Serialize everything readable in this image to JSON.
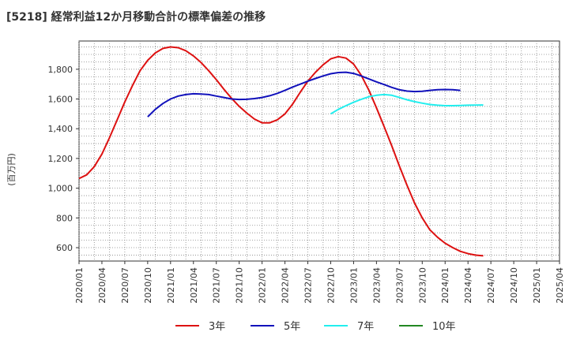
{
  "chart_data": {
    "type": "line",
    "title": "[5218]  経常利益12か月移動合計の標準偏差の推移",
    "ylabel": "(百万円)",
    "xlabel": "",
    "ylim": [
      510,
      1990
    ],
    "yticks": [
      600,
      800,
      1000,
      1200,
      1400,
      1600,
      1800
    ],
    "ytick_labels": [
      "600",
      "800",
      "1,000",
      "1,200",
      "1,400",
      "1,600",
      "1,800"
    ],
    "xlim": [
      "2020-01",
      "2025-04"
    ],
    "xticks": [
      "2020/01",
      "2020/04",
      "2020/07",
      "2020/10",
      "2021/01",
      "2021/04",
      "2021/07",
      "2021/10",
      "2022/01",
      "2022/04",
      "2022/07",
      "2022/10",
      "2023/01",
      "2023/04",
      "2023/07",
      "2023/10",
      "2024/01",
      "2024/04",
      "2024/07",
      "2024/10",
      "2025/01",
      "2025/04"
    ],
    "grid": true,
    "legend_position": "bottom",
    "series": [
      {
        "name": "3年",
        "color": "#dd1111",
        "points": [
          [
            "2020-01",
            1065
          ],
          [
            "2020-02",
            1090
          ],
          [
            "2020-03",
            1145
          ],
          [
            "2020-04",
            1230
          ],
          [
            "2020-05",
            1340
          ],
          [
            "2020-06",
            1460
          ],
          [
            "2020-07",
            1580
          ],
          [
            "2020-08",
            1690
          ],
          [
            "2020-09",
            1790
          ],
          [
            "2020-10",
            1860
          ],
          [
            "2020-11",
            1910
          ],
          [
            "2020-12",
            1940
          ],
          [
            "2021-01",
            1950
          ],
          [
            "2021-02",
            1945
          ],
          [
            "2021-03",
            1925
          ],
          [
            "2021-04",
            1890
          ],
          [
            "2021-05",
            1845
          ],
          [
            "2021-06",
            1790
          ],
          [
            "2021-07",
            1730
          ],
          [
            "2021-08",
            1665
          ],
          [
            "2021-09",
            1605
          ],
          [
            "2021-10",
            1550
          ],
          [
            "2021-11",
            1505
          ],
          [
            "2021-12",
            1465
          ],
          [
            "2022-01",
            1440
          ],
          [
            "2022-02",
            1440
          ],
          [
            "2022-03",
            1460
          ],
          [
            "2022-04",
            1500
          ],
          [
            "2022-05",
            1565
          ],
          [
            "2022-06",
            1645
          ],
          [
            "2022-07",
            1720
          ],
          [
            "2022-08",
            1780
          ],
          [
            "2022-09",
            1830
          ],
          [
            "2022-10",
            1870
          ],
          [
            "2022-11",
            1885
          ],
          [
            "2022-12",
            1875
          ],
          [
            "2023-01",
            1835
          ],
          [
            "2023-02",
            1760
          ],
          [
            "2023-03",
            1660
          ],
          [
            "2023-04",
            1540
          ],
          [
            "2023-05",
            1415
          ],
          [
            "2023-06",
            1285
          ],
          [
            "2023-07",
            1150
          ],
          [
            "2023-08",
            1020
          ],
          [
            "2023-09",
            900
          ],
          [
            "2023-10",
            800
          ],
          [
            "2023-11",
            720
          ],
          [
            "2023-12",
            670
          ],
          [
            "2024-01",
            630
          ],
          [
            "2024-02",
            600
          ],
          [
            "2024-03",
            575
          ],
          [
            "2024-04",
            560
          ],
          [
            "2024-05",
            550
          ],
          [
            "2024-06",
            545
          ]
        ]
      },
      {
        "name": "5年",
        "color": "#1111bb",
        "points": [
          [
            "2020-10",
            1480
          ],
          [
            "2020-11",
            1530
          ],
          [
            "2020-12",
            1570
          ],
          [
            "2021-01",
            1600
          ],
          [
            "2021-02",
            1620
          ],
          [
            "2021-03",
            1630
          ],
          [
            "2021-04",
            1635
          ],
          [
            "2021-05",
            1633
          ],
          [
            "2021-06",
            1630
          ],
          [
            "2021-07",
            1620
          ],
          [
            "2021-08",
            1610
          ],
          [
            "2021-09",
            1600
          ],
          [
            "2021-10",
            1597
          ],
          [
            "2021-11",
            1598
          ],
          [
            "2021-12",
            1603
          ],
          [
            "2022-01",
            1610
          ],
          [
            "2022-02",
            1622
          ],
          [
            "2022-03",
            1638
          ],
          [
            "2022-04",
            1658
          ],
          [
            "2022-05",
            1680
          ],
          [
            "2022-06",
            1700
          ],
          [
            "2022-07",
            1720
          ],
          [
            "2022-08",
            1738
          ],
          [
            "2022-09",
            1755
          ],
          [
            "2022-10",
            1770
          ],
          [
            "2022-11",
            1778
          ],
          [
            "2022-12",
            1780
          ],
          [
            "2023-01",
            1772
          ],
          [
            "2023-02",
            1755
          ],
          [
            "2023-03",
            1735
          ],
          [
            "2023-04",
            1715
          ],
          [
            "2023-05",
            1697
          ],
          [
            "2023-06",
            1678
          ],
          [
            "2023-07",
            1662
          ],
          [
            "2023-08",
            1653
          ],
          [
            "2023-09",
            1650
          ],
          [
            "2023-10",
            1652
          ],
          [
            "2023-11",
            1658
          ],
          [
            "2023-12",
            1662
          ],
          [
            "2024-01",
            1664
          ],
          [
            "2024-02",
            1662
          ],
          [
            "2024-03",
            1658
          ]
        ]
      },
      {
        "name": "7年",
        "color": "#22eeee",
        "points": [
          [
            "2022-10",
            1500
          ],
          [
            "2022-11",
            1530
          ],
          [
            "2022-12",
            1555
          ],
          [
            "2023-01",
            1578
          ],
          [
            "2023-02",
            1598
          ],
          [
            "2023-03",
            1615
          ],
          [
            "2023-04",
            1625
          ],
          [
            "2023-05",
            1630
          ],
          [
            "2023-06",
            1625
          ],
          [
            "2023-07",
            1610
          ],
          [
            "2023-08",
            1595
          ],
          [
            "2023-09",
            1582
          ],
          [
            "2023-10",
            1572
          ],
          [
            "2023-11",
            1563
          ],
          [
            "2023-12",
            1558
          ],
          [
            "2024-01",
            1555
          ],
          [
            "2024-02",
            1555
          ],
          [
            "2024-03",
            1556
          ],
          [
            "2024-04",
            1558
          ],
          [
            "2024-05",
            1559
          ],
          [
            "2024-06",
            1560
          ]
        ]
      },
      {
        "name": "10年",
        "color": "#228822",
        "points": []
      }
    ]
  }
}
